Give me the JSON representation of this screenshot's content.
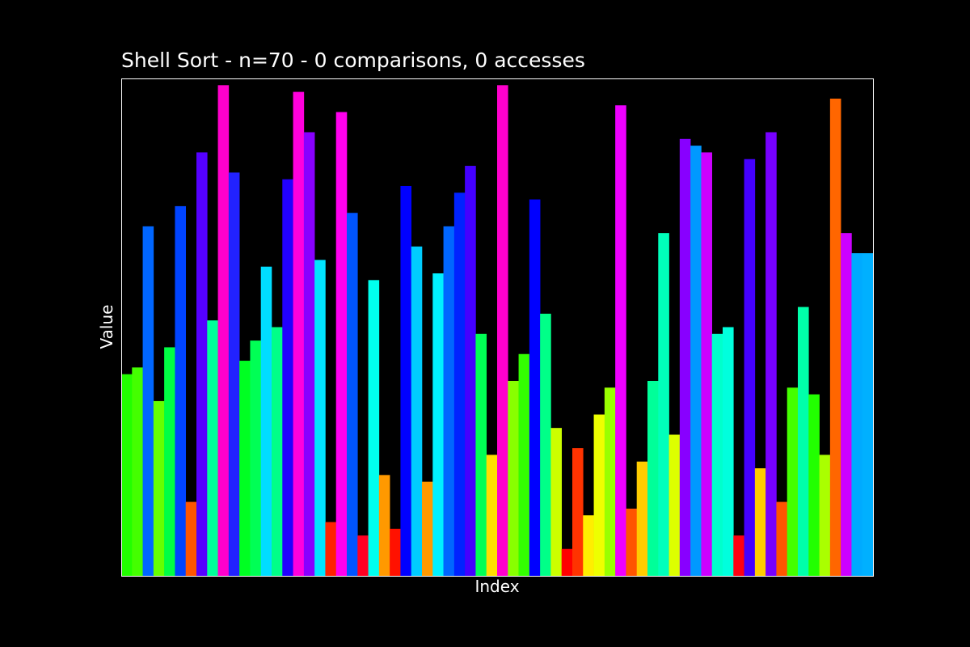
{
  "chart_data": {
    "type": "bar",
    "title": "Shell Sort - n=70 - 0 comparisons, 0 accesses",
    "xlabel": "Index",
    "ylabel": "Value",
    "show_ticks": false,
    "grid": false,
    "ylim": [
      0,
      74
    ],
    "values": [
      30,
      31,
      52,
      26,
      34,
      55,
      11,
      63,
      38,
      73,
      60,
      32,
      35,
      46,
      37,
      59,
      72,
      66,
      47,
      8,
      69,
      54,
      6,
      44,
      15,
      7,
      58,
      49,
      14,
      45,
      52,
      57,
      61,
      36,
      18,
      73,
      29,
      33,
      56,
      39,
      22,
      4,
      19,
      9,
      24,
      28,
      70,
      10,
      17,
      29,
      51,
      21,
      65,
      64,
      63,
      36,
      37,
      6,
      62,
      16,
      66,
      11,
      28,
      40,
      27,
      18,
      71,
      51,
      48,
      48
    ],
    "colors": [
      "#22ff00",
      "#44ff00",
      "#0066ff",
      "#66ff00",
      "#00ff44",
      "#0044ff",
      "#ff5500",
      "#5500ff",
      "#00ff99",
      "#ff00cc",
      "#2222ff",
      "#00ff22",
      "#00ff55",
      "#00ddff",
      "#00ff88",
      "#2200ff",
      "#ff00dd",
      "#8800ff",
      "#00e5ff",
      "#ff2200",
      "#ff00ee",
      "#0055ff",
      "#ff0022",
      "#00ffee",
      "#ff9900",
      "#ff1100",
      "#0000ff",
      "#00ccff",
      "#ff9900",
      "#00f0ff",
      "#0066ff",
      "#0022ff",
      "#4400ff",
      "#00ff55",
      "#ffdd00",
      "#ff00cc",
      "#88ff00",
      "#33ff00",
      "#0000ff",
      "#00ff88",
      "#ccff00",
      "#ff0000",
      "#ff3300",
      "#ffee00",
      "#eeff00",
      "#99ff00",
      "#ee00ff",
      "#ff5500",
      "#ffcc00",
      "#00ff99",
      "#00ffbb",
      "#ddff00",
      "#8800ff",
      "#0099ff",
      "#cc00ff",
      "#00ffcc",
      "#00ffdd",
      "#ff0011",
      "#4400ff",
      "#ffcc00",
      "#7700ff",
      "#ff5500",
      "#44ff00",
      "#00ffaa",
      "#22ff00",
      "#aaff00",
      "#ff6600",
      "#cc00ff",
      "#00aaff",
      "#00b0ff"
    ],
    "background": "#000000",
    "frame_color": "#ffffff"
  }
}
